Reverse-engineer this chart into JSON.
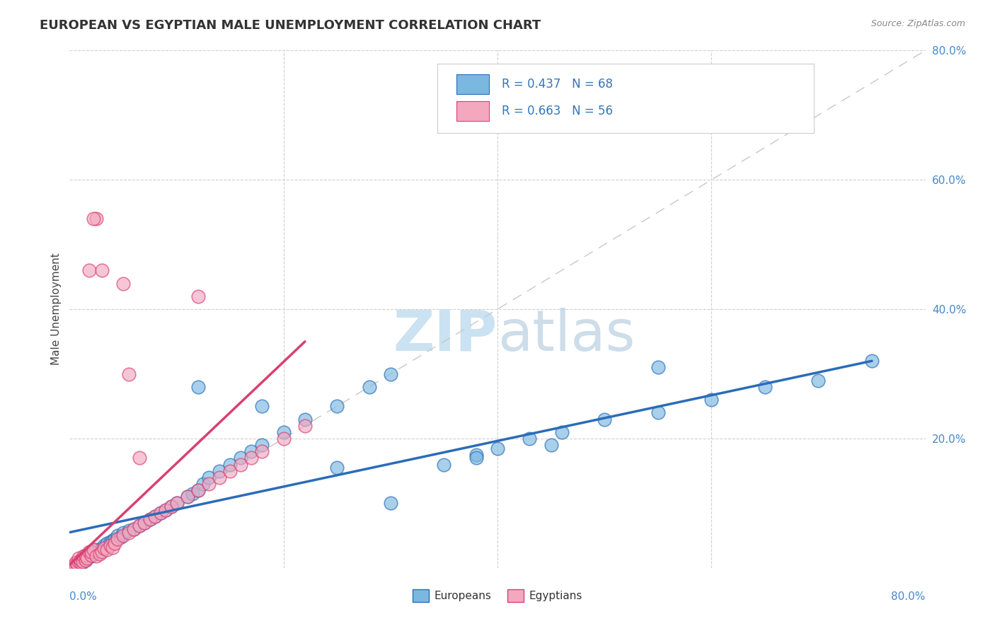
{
  "title": "EUROPEAN VS EGYPTIAN MALE UNEMPLOYMENT CORRELATION CHART",
  "source": "Source: ZipAtlas.com",
  "ylabel": "Male Unemployment",
  "blue_color": "#7ab8e0",
  "pink_color": "#f4a8c0",
  "blue_line_color": "#2b6cb8",
  "pink_line_color": "#d94070",
  "ref_line_color": "#c8c8c8",
  "background_color": "#ffffff",
  "xlim": [
    0,
    0.8
  ],
  "ylim": [
    0,
    0.8
  ],
  "europeans_x": [
    0.005,
    0.007,
    0.008,
    0.01,
    0.01,
    0.012,
    0.013,
    0.015,
    0.015,
    0.016,
    0.018,
    0.02,
    0.02,
    0.022,
    0.025,
    0.028,
    0.03,
    0.032,
    0.035,
    0.038,
    0.04,
    0.042,
    0.045,
    0.048,
    0.05,
    0.055,
    0.06,
    0.065,
    0.07,
    0.075,
    0.08,
    0.085,
    0.09,
    0.095,
    0.1,
    0.11,
    0.115,
    0.12,
    0.125,
    0.13,
    0.14,
    0.15,
    0.16,
    0.17,
    0.18,
    0.2,
    0.22,
    0.25,
    0.28,
    0.3,
    0.35,
    0.38,
    0.4,
    0.43,
    0.46,
    0.5,
    0.55,
    0.6,
    0.65,
    0.7,
    0.75,
    0.3,
    0.12,
    0.18,
    0.25,
    0.38,
    0.45,
    0.55
  ],
  "europeans_y": [
    0.005,
    0.008,
    0.01,
    0.005,
    0.012,
    0.01,
    0.015,
    0.012,
    0.018,
    0.015,
    0.02,
    0.018,
    0.025,
    0.022,
    0.028,
    0.025,
    0.03,
    0.035,
    0.038,
    0.04,
    0.042,
    0.045,
    0.05,
    0.048,
    0.055,
    0.058,
    0.06,
    0.065,
    0.07,
    0.075,
    0.08,
    0.085,
    0.09,
    0.095,
    0.1,
    0.11,
    0.115,
    0.12,
    0.13,
    0.14,
    0.15,
    0.16,
    0.17,
    0.18,
    0.19,
    0.21,
    0.23,
    0.25,
    0.28,
    0.3,
    0.16,
    0.175,
    0.185,
    0.2,
    0.21,
    0.23,
    0.24,
    0.26,
    0.28,
    0.29,
    0.32,
    0.1,
    0.28,
    0.25,
    0.155,
    0.17,
    0.19,
    0.31
  ],
  "egyptians_x": [
    0.003,
    0.005,
    0.006,
    0.007,
    0.008,
    0.008,
    0.01,
    0.01,
    0.012,
    0.012,
    0.013,
    0.015,
    0.015,
    0.016,
    0.018,
    0.02,
    0.02,
    0.022,
    0.025,
    0.028,
    0.03,
    0.032,
    0.035,
    0.038,
    0.04,
    0.042,
    0.045,
    0.05,
    0.055,
    0.06,
    0.065,
    0.07,
    0.075,
    0.08,
    0.085,
    0.09,
    0.095,
    0.1,
    0.11,
    0.12,
    0.13,
    0.14,
    0.15,
    0.16,
    0.17,
    0.18,
    0.2,
    0.22,
    0.12,
    0.05,
    0.018,
    0.025,
    0.03,
    0.022,
    0.055,
    0.065
  ],
  "egyptians_y": [
    0.003,
    0.005,
    0.008,
    0.006,
    0.01,
    0.015,
    0.008,
    0.012,
    0.015,
    0.01,
    0.018,
    0.012,
    0.02,
    0.015,
    0.025,
    0.02,
    0.025,
    0.028,
    0.018,
    0.022,
    0.025,
    0.03,
    0.028,
    0.035,
    0.032,
    0.038,
    0.045,
    0.05,
    0.055,
    0.06,
    0.065,
    0.07,
    0.075,
    0.08,
    0.085,
    0.09,
    0.095,
    0.1,
    0.11,
    0.12,
    0.13,
    0.14,
    0.15,
    0.16,
    0.17,
    0.18,
    0.2,
    0.22,
    0.42,
    0.44,
    0.46,
    0.54,
    0.46,
    0.54,
    0.3,
    0.17
  ],
  "eu_line_x": [
    0.0,
    0.75
  ],
  "eu_line_y": [
    0.055,
    0.32
  ],
  "eg_line_x": [
    0.0,
    0.22
  ],
  "eg_line_y": [
    0.005,
    0.35
  ]
}
